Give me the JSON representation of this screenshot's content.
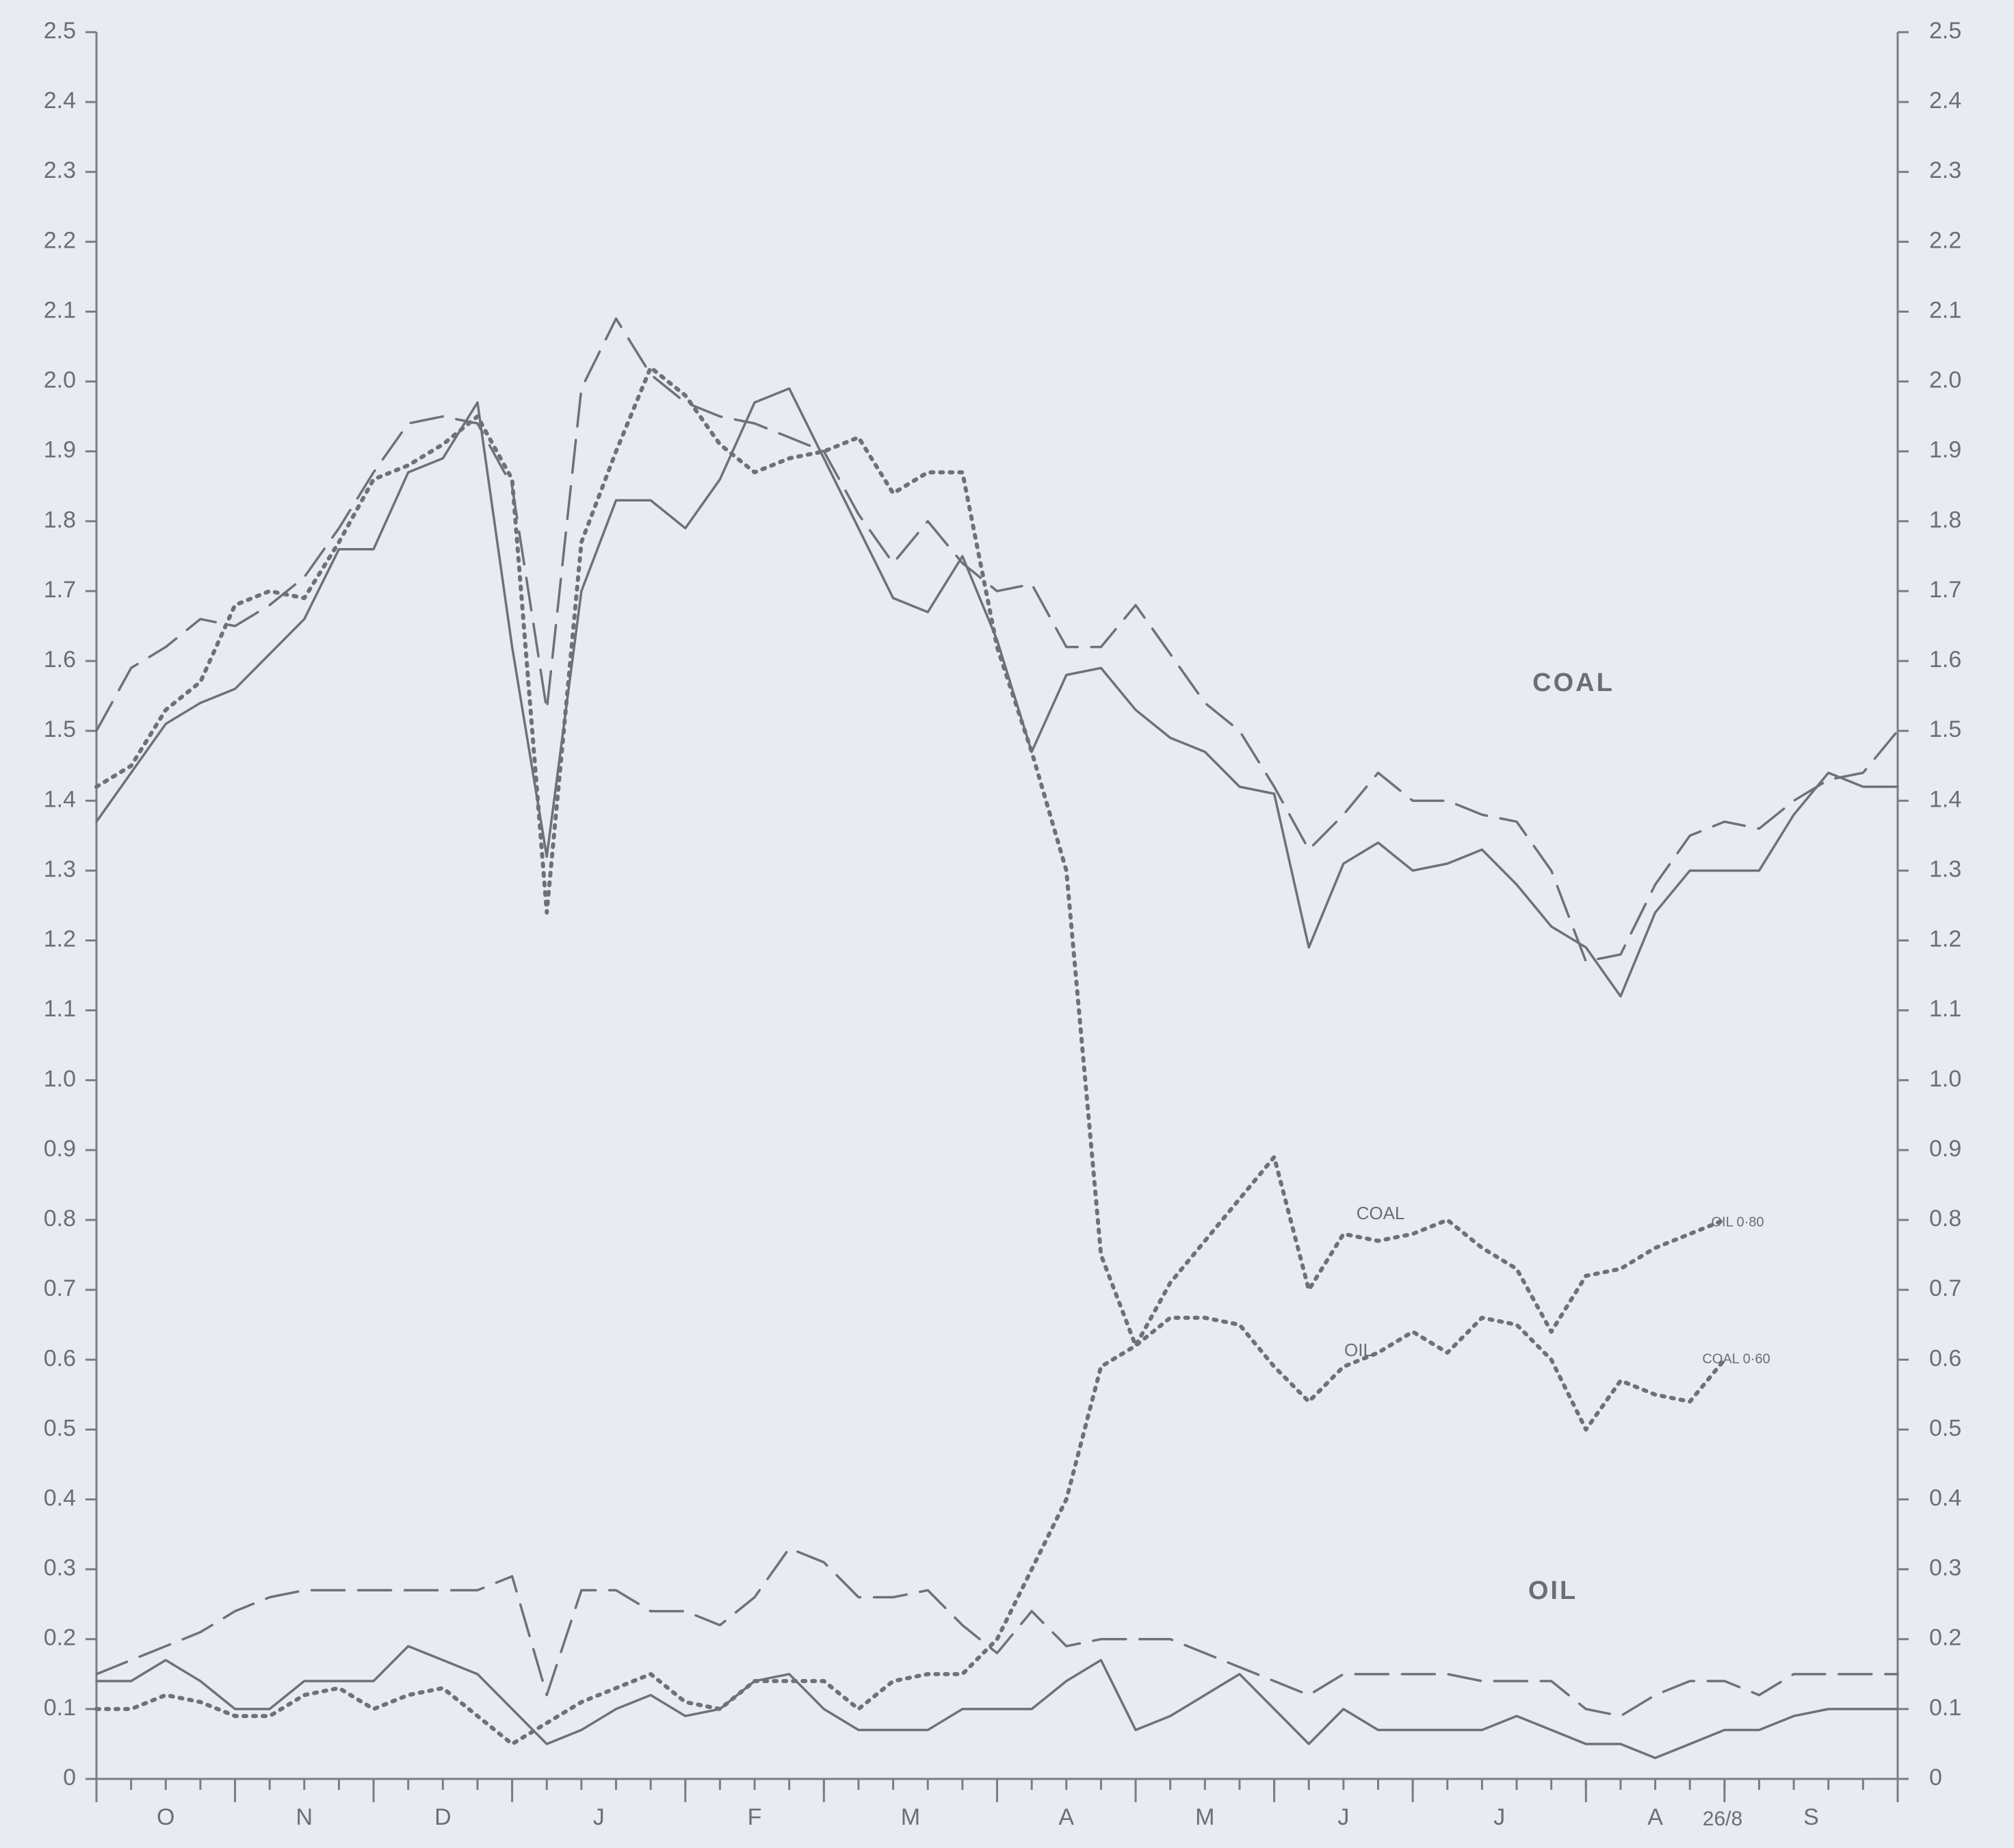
{
  "chart_data": {
    "type": "line",
    "categories": [
      "O",
      "N",
      "D",
      "J",
      "F",
      "M",
      "A",
      "M",
      "J",
      "J",
      "A",
      "S"
    ],
    "xticks": [
      0,
      4,
      8,
      12,
      17,
      21,
      26,
      30,
      34,
      38,
      43,
      47,
      52
    ],
    "x": [
      0,
      1,
      2,
      3,
      4,
      5,
      6,
      7,
      8,
      9,
      10,
      11,
      12,
      13,
      14,
      15,
      16,
      17,
      18,
      19,
      20,
      21,
      22,
      23,
      24,
      25,
      26,
      27,
      28,
      29,
      30,
      31,
      32,
      33,
      34,
      35,
      36,
      37,
      38,
      39,
      40,
      41,
      42,
      43,
      44,
      45,
      46,
      47,
      48,
      49,
      50,
      51,
      52
    ],
    "xlim": [
      0,
      52
    ],
    "ylim": [
      0,
      2.5
    ],
    "yticks": [
      0,
      0.1,
      0.2,
      0.3,
      0.4,
      0.5,
      0.6,
      0.7,
      0.8,
      0.9,
      {
        "value": 1,
        "label": "1.0"
      },
      1.1,
      1.2,
      1.3,
      1.4,
      1.5,
      1.6,
      1.7,
      1.8,
      1.9,
      {
        "value": 2,
        "label": "2.0"
      },
      2.1,
      2.2,
      2.3,
      2.4,
      2.5
    ],
    "right_axis": true,
    "series": [
      {
        "color": "#6e7177",
        "style": "solid",
        "values": [
          1.37,
          1.44,
          1.51,
          1.54,
          1.56,
          1.61,
          1.66,
          1.76,
          1.76,
          1.87,
          1.89,
          1.97,
          1.62,
          1.32,
          1.7,
          1.83,
          1.83,
          1.79,
          1.86,
          1.97,
          1.99,
          1.89,
          1.79,
          1.69,
          1.67,
          1.75,
          1.63,
          1.47,
          1.58,
          1.59,
          1.53,
          1.49,
          1.47,
          1.42,
          1.41,
          1.19,
          1.31,
          1.34,
          1.3,
          1.31,
          1.33,
          1.28,
          1.22,
          1.19,
          1.12,
          1.24,
          1.3,
          1.3,
          1.3,
          1.38,
          1.44,
          1.42,
          1.42
        ]
      },
      {
        "color": "#6e7177",
        "style": "dashed",
        "values": [
          1.5,
          1.59,
          1.62,
          1.66,
          1.65,
          1.68,
          1.72,
          1.79,
          1.87,
          1.94,
          1.95,
          1.94,
          1.85,
          1.53,
          1.99,
          2.09,
          2.01,
          1.97,
          1.95,
          1.94,
          1.92,
          1.9,
          1.81,
          1.74,
          1.8,
          1.74,
          1.7,
          1.71,
          1.62,
          1.62,
          1.68,
          1.61,
          1.54,
          1.5,
          1.42,
          1.33,
          1.38,
          1.44,
          1.4,
          1.4,
          1.38,
          1.37,
          1.3,
          1.17,
          1.18,
          1.28,
          1.35,
          1.37,
          1.36,
          1.4,
          1.43,
          1.44,
          1.5
        ]
      },
      {
        "color": "#6e7177",
        "style": "dotted",
        "values": [
          1.42,
          1.45,
          1.53,
          1.57,
          1.68,
          1.7,
          1.69,
          1.77,
          1.86,
          1.88,
          1.91,
          1.95,
          1.86,
          1.24,
          1.77,
          1.9,
          2.02,
          1.98,
          1.91,
          1.87,
          1.89,
          1.9,
          1.92,
          1.84,
          1.87,
          1.87,
          1.62,
          1.47,
          1.3,
          0.75,
          0.62,
          0.66,
          0.66,
          0.65,
          0.59,
          0.54,
          0.59,
          0.61,
          0.64,
          0.61,
          0.66,
          0.65,
          0.6,
          0.5,
          0.57,
          0.55,
          0.54,
          0.6,
          null,
          null,
          null,
          null,
          null
        ]
      },
      {
        "color": "#6e7177",
        "style": "solid",
        "values": [
          0.14,
          0.14,
          0.17,
          0.14,
          0.1,
          0.1,
          0.14,
          0.14,
          0.14,
          0.19,
          0.17,
          0.15,
          0.1,
          0.05,
          0.07,
          0.1,
          0.12,
          0.09,
          0.1,
          0.14,
          0.15,
          0.1,
          0.07,
          0.07,
          0.07,
          0.1,
          0.1,
          0.1,
          0.14,
          0.17,
          0.07,
          0.09,
          0.12,
          0.15,
          0.1,
          0.05,
          0.1,
          0.07,
          0.07,
          0.07,
          0.07,
          0.09,
          0.07,
          0.05,
          0.05,
          0.03,
          0.05,
          0.07,
          0.07,
          0.09,
          0.1,
          0.1,
          0.1
        ]
      },
      {
        "color": "#6e7177",
        "style": "dashed",
        "values": [
          0.15,
          0.17,
          0.19,
          0.21,
          0.24,
          0.26,
          0.27,
          0.27,
          0.27,
          0.27,
          0.27,
          0.27,
          0.29,
          0.12,
          0.27,
          0.27,
          0.24,
          0.24,
          0.22,
          0.26,
          0.33,
          0.31,
          0.26,
          0.26,
          0.27,
          0.22,
          0.18,
          0.24,
          0.19,
          0.2,
          0.2,
          0.2,
          0.18,
          0.16,
          0.14,
          0.12,
          0.15,
          0.15,
          0.15,
          0.15,
          0.14,
          0.14,
          0.14,
          0.1,
          0.09,
          0.12,
          0.14,
          0.14,
          0.12,
          0.15,
          0.15,
          0.15,
          0.15
        ]
      },
      {
        "color": "#6e7177",
        "style": "dotted",
        "values": [
          0.1,
          0.1,
          0.12,
          0.11,
          0.09,
          0.09,
          0.12,
          0.13,
          0.1,
          0.12,
          0.13,
          0.09,
          0.05,
          0.08,
          0.11,
          0.13,
          0.15,
          0.11,
          0.1,
          0.14,
          0.14,
          0.14,
          0.1,
          0.14,
          0.15,
          0.15,
          0.2,
          0.3,
          0.4,
          0.59,
          0.62,
          0.71,
          0.77,
          0.83,
          0.89,
          0.7,
          0.78,
          0.77,
          0.78,
          0.8,
          0.76,
          0.73,
          0.64,
          0.72,
          0.73,
          0.76,
          0.78,
          0.8,
          null,
          null,
          null,
          null,
          null
        ]
      }
    ],
    "annotations": [
      "COAL",
      "OIL",
      "COAL",
      "OIL",
      "OIL 0·80",
      "COAL 0·60",
      "26/8"
    ]
  }
}
